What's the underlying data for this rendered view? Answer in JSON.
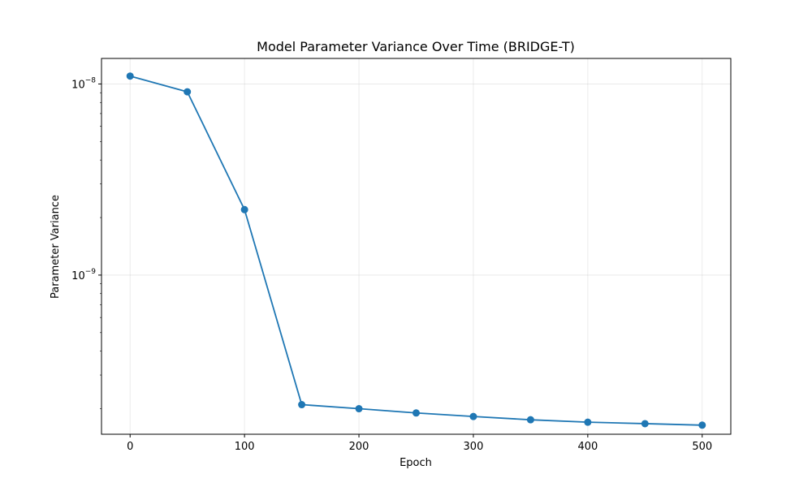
{
  "chart_data": {
    "type": "line",
    "title": "Model Parameter Variance Over Time (BRIDGE-T)",
    "xlabel": "Epoch",
    "ylabel": "Parameter Variance",
    "x": [
      0,
      50,
      100,
      150,
      200,
      250,
      300,
      350,
      400,
      450,
      500
    ],
    "series": [
      {
        "values": [
          1.1e-08,
          9.1e-09,
          2.2e-09,
          2.1e-10,
          2e-10,
          1.9e-10,
          1.82e-10,
          1.75e-10,
          1.7e-10,
          1.67e-10,
          1.64e-10
        ],
        "color": "#1f77b4"
      }
    ],
    "xlim": [
      -25,
      525
    ],
    "ylim": [
      1.47e-10,
      1.36e-08
    ],
    "yscale": "log",
    "xticks": [
      0,
      100,
      200,
      300,
      400,
      500
    ],
    "yticks": [
      {
        "base": "10",
        "exp": "−9",
        "value": 1e-09
      },
      {
        "base": "10",
        "exp": "−8",
        "value": 1e-08
      }
    ],
    "grid": true
  }
}
